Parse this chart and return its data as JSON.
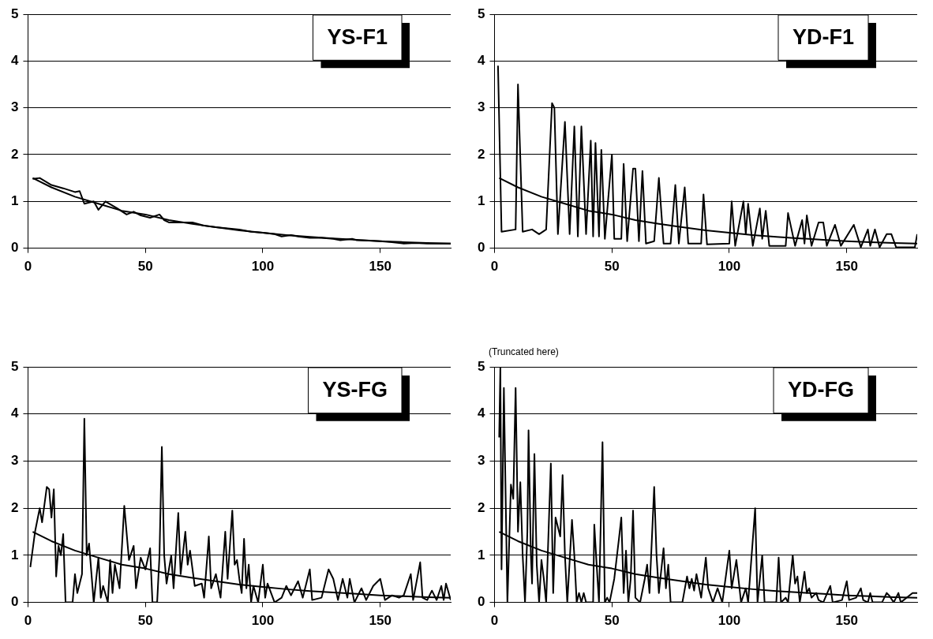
{
  "chart_data": [
    {
      "type": "line",
      "title": "YS-F1",
      "xlim": [
        0,
        180
      ],
      "xticks": [
        0,
        50,
        100,
        150
      ],
      "ylim": [
        0,
        5
      ],
      "yticks": [
        0,
        1,
        2,
        3,
        4,
        5
      ],
      "grid": "y",
      "line_style": "solid",
      "series": [
        {
          "color": "#000000",
          "x": [
            2,
            5,
            10,
            15,
            20,
            22,
            24,
            28,
            30,
            33,
            38,
            42,
            45,
            48,
            52,
            56,
            58,
            60,
            65,
            70,
            75,
            80,
            90,
            95,
            100,
            105,
            108,
            112,
            115,
            120,
            125,
            130,
            133,
            138,
            140,
            145,
            150,
            155,
            160,
            165,
            170,
            175,
            180
          ],
          "values": [
            1.48,
            1.5,
            1.35,
            1.28,
            1.2,
            1.22,
            0.95,
            1.0,
            0.82,
            1.0,
            0.85,
            0.72,
            0.78,
            0.7,
            0.65,
            0.72,
            0.6,
            0.55,
            0.55,
            0.55,
            0.48,
            0.45,
            0.4,
            0.35,
            0.33,
            0.3,
            0.25,
            0.28,
            0.25,
            0.22,
            0.22,
            0.2,
            0.17,
            0.2,
            0.17,
            0.16,
            0.15,
            0.13,
            0.1,
            0.11,
            0.1,
            0.1,
            0.1
          ]
        },
        {
          "color": "#000000",
          "x": [
            2,
            10,
            20,
            30,
            40,
            50,
            60,
            70,
            80,
            90,
            100,
            110,
            120,
            130,
            140,
            150,
            160,
            170,
            180
          ],
          "values": [
            1.5,
            1.3,
            1.1,
            0.95,
            0.8,
            0.72,
            0.6,
            0.52,
            0.45,
            0.38,
            0.33,
            0.28,
            0.24,
            0.21,
            0.18,
            0.15,
            0.13,
            0.11,
            0.1
          ]
        }
      ]
    },
    {
      "type": "line",
      "title": "YD-F1",
      "xlim": [
        0,
        180
      ],
      "xticks": [
        0,
        50,
        100,
        150
      ],
      "ylim": [
        0,
        5
      ],
      "yticks": [
        0,
        1,
        2,
        3,
        4,
        5
      ],
      "grid": "y",
      "line_style": "solid",
      "series": [
        {
          "color": "#000000",
          "x": [
            1.5,
            3,
            9,
            10,
            12,
            16,
            19,
            22,
            24.5,
            25.5,
            27,
            30,
            32,
            34,
            35.5,
            37,
            39,
            41,
            42,
            43,
            44.5,
            45.5,
            47,
            50,
            51,
            54,
            55,
            56.5,
            59,
            60,
            61.5,
            63,
            64.5,
            68,
            70,
            72,
            75,
            77,
            78.5,
            81,
            82.5,
            88,
            89,
            90.5,
            100,
            101,
            102.5,
            106,
            107,
            108,
            110,
            113,
            114,
            115.5,
            117,
            124,
            125,
            128,
            131,
            132,
            133,
            135,
            138,
            140,
            141.5,
            145,
            147.5,
            153,
            156,
            159,
            160,
            162,
            164,
            167,
            169,
            171,
            179,
            180
          ],
          "values": [
            3.9,
            0.35,
            0.4,
            3.5,
            0.35,
            0.4,
            0.3,
            0.4,
            3.1,
            3.0,
            0.3,
            2.7,
            0.3,
            2.6,
            0.25,
            2.6,
            0.3,
            2.3,
            0.25,
            2.25,
            0.25,
            2.1,
            0.2,
            2.0,
            0.2,
            0.2,
            1.8,
            0.15,
            1.7,
            1.7,
            0.15,
            1.65,
            0.1,
            0.15,
            1.5,
            0.1,
            0.1,
            1.35,
            0.1,
            1.3,
            0.1,
            0.1,
            1.15,
            0.08,
            0.1,
            1.0,
            0.05,
            1.0,
            0.3,
            0.95,
            0.05,
            0.85,
            0.2,
            0.8,
            0.05,
            0.05,
            0.75,
            0.05,
            0.6,
            0.1,
            0.7,
            0.05,
            0.55,
            0.55,
            0.05,
            0.5,
            0.05,
            0.5,
            0.02,
            0.4,
            0.05,
            0.4,
            0.02,
            0.3,
            0.3,
            0.02,
            0.02,
            0.3
          ]
        },
        {
          "color": "#000000",
          "x": [
            2,
            10,
            20,
            30,
            40,
            50,
            60,
            70,
            80,
            90,
            100,
            110,
            120,
            130,
            140,
            150,
            160,
            170,
            180
          ],
          "values": [
            1.5,
            1.3,
            1.1,
            0.95,
            0.8,
            0.72,
            0.6,
            0.52,
            0.45,
            0.38,
            0.33,
            0.28,
            0.24,
            0.21,
            0.18,
            0.15,
            0.13,
            0.11,
            0.1
          ]
        }
      ]
    },
    {
      "type": "line",
      "title": "YS-FG",
      "xlim": [
        0,
        180
      ],
      "xticks": [
        0,
        50,
        100,
        150
      ],
      "ylim": [
        0,
        5
      ],
      "yticks": [
        0,
        1,
        2,
        3,
        4,
        5
      ],
      "grid": "y",
      "line_style": "solid",
      "series": [
        {
          "color": "#000000",
          "x": [
            1,
            3,
            5,
            6,
            8,
            9,
            10,
            11,
            12,
            13,
            14,
            15,
            16,
            19,
            20,
            21,
            23,
            24,
            25,
            26,
            28,
            30,
            31,
            32,
            34,
            35,
            36,
            37,
            39,
            41,
            43,
            45,
            46,
            48,
            50,
            52,
            53,
            55,
            56,
            57,
            58,
            59,
            61,
            62,
            64,
            65,
            67,
            68,
            69,
            71,
            74,
            75,
            77,
            78,
            80,
            82,
            84,
            85,
            87,
            88,
            89,
            90,
            91,
            92,
            93,
            94,
            95,
            96,
            98,
            100,
            101,
            102,
            105,
            108,
            110,
            112,
            115,
            117,
            120,
            121,
            125,
            128,
            130,
            132,
            134,
            136,
            137,
            139,
            142,
            144,
            147,
            150,
            152,
            155,
            158,
            160,
            163,
            164,
            167,
            168,
            170,
            172,
            174,
            176,
            177,
            178,
            180
          ],
          "values": [
            0.75,
            1.5,
            2.0,
            1.7,
            2.45,
            2.4,
            1.8,
            2.4,
            0.55,
            1.2,
            1.0,
            1.45,
            0.0,
            0.0,
            0.6,
            0.2,
            0.6,
            3.9,
            1.0,
            1.25,
            0.0,
            0.95,
            0.1,
            0.35,
            0.0,
            0.9,
            0.2,
            0.8,
            0.3,
            2.05,
            0.9,
            1.2,
            0.3,
            0.95,
            0.7,
            1.15,
            0.0,
            0.0,
            1.0,
            3.3,
            1.0,
            0.4,
            1.0,
            0.3,
            1.9,
            0.6,
            1.5,
            0.8,
            1.1,
            0.35,
            0.4,
            0.1,
            1.4,
            0.3,
            0.6,
            0.1,
            1.5,
            0.5,
            1.95,
            0.8,
            0.9,
            0.5,
            0.2,
            1.35,
            0.3,
            0.8,
            0.0,
            0.35,
            0.0,
            0.8,
            0.1,
            0.4,
            0.0,
            0.1,
            0.35,
            0.15,
            0.45,
            0.1,
            0.7,
            0.05,
            0.1,
            0.7,
            0.5,
            0.05,
            0.5,
            0.1,
            0.5,
            0.0,
            0.3,
            0.05,
            0.35,
            0.5,
            0.05,
            0.15,
            0.1,
            0.15,
            0.6,
            0.05,
            0.85,
            0.1,
            0.05,
            0.25,
            0.05,
            0.35,
            0.05,
            0.4,
            0.05
          ]
        },
        {
          "color": "#000000",
          "x": [
            2,
            10,
            20,
            30,
            40,
            50,
            60,
            70,
            80,
            90,
            100,
            110,
            120,
            130,
            140,
            150,
            160,
            170,
            180
          ],
          "values": [
            1.5,
            1.3,
            1.1,
            0.95,
            0.8,
            0.72,
            0.6,
            0.52,
            0.45,
            0.38,
            0.33,
            0.28,
            0.24,
            0.21,
            0.18,
            0.15,
            0.13,
            0.11,
            0.1
          ]
        }
      ]
    },
    {
      "type": "line",
      "title": "YD-FG",
      "xlim": [
        0,
        180
      ],
      "xticks": [
        0,
        50,
        100,
        150
      ],
      "ylim": [
        0,
        5
      ],
      "yticks": [
        0,
        1,
        2,
        3,
        4,
        5
      ],
      "grid": "y",
      "line_style": "solid",
      "annotations": [
        {
          "text": "(Truncated here)",
          "x": 2.5,
          "y": 5
        }
      ],
      "series": [
        {
          "color": "#000000",
          "x": [
            2,
            2.5,
            3,
            4,
            5,
            5.5,
            7,
            8,
            9,
            10,
            11,
            12,
            13,
            14,
            14.5,
            15.5,
            16,
            17,
            18,
            19,
            20,
            21,
            22,
            24,
            25,
            26,
            28,
            29,
            30,
            31,
            33,
            34,
            35,
            36,
            37,
            38,
            39,
            42,
            42.5,
            43.5,
            44.5,
            46,
            47,
            48,
            49,
            51,
            53,
            54,
            55,
            56,
            57,
            58,
            59,
            60,
            62,
            64,
            65,
            66,
            68,
            69,
            70,
            72,
            73,
            74,
            75,
            80,
            82,
            83,
            84,
            85,
            86,
            88,
            90,
            91,
            93,
            95,
            97,
            100,
            101,
            103,
            105,
            107,
            108,
            111,
            112,
            114,
            115,
            120,
            121,
            122,
            124,
            125,
            127,
            128,
            129,
            130,
            131,
            132,
            133,
            134,
            135,
            137,
            138,
            140,
            143,
            144,
            148,
            150,
            151,
            154,
            156,
            157,
            159,
            160,
            161,
            165,
            167,
            168,
            170,
            172,
            173,
            178,
            180
          ],
          "values": [
            3.5,
            5.0,
            0.7,
            4.55,
            1.5,
            0.0,
            2.5,
            2.2,
            4.55,
            1.5,
            2.55,
            1.0,
            0.0,
            1.5,
            3.65,
            1.0,
            0.4,
            3.15,
            0.8,
            0.0,
            0.9,
            0.5,
            0.0,
            2.95,
            0.2,
            1.8,
            1.4,
            2.7,
            1.0,
            0.0,
            1.75,
            1.0,
            0.0,
            0.2,
            0.0,
            0.2,
            0.0,
            0.0,
            1.65,
            0.8,
            0.0,
            3.4,
            0.0,
            0.1,
            0.0,
            0.5,
            1.35,
            1.8,
            0.2,
            1.1,
            0.0,
            0.5,
            1.95,
            0.1,
            0.0,
            0.5,
            0.8,
            0.2,
            2.45,
            1.0,
            0.2,
            1.15,
            0.3,
            0.8,
            0.0,
            0.0,
            0.55,
            0.3,
            0.5,
            0.25,
            0.6,
            0.1,
            0.95,
            0.3,
            0.0,
            0.3,
            0.0,
            1.1,
            0.3,
            0.9,
            0.0,
            0.3,
            0.0,
            2.0,
            0.0,
            1.0,
            0.0,
            0.0,
            0.95,
            0.0,
            0.1,
            0.0,
            1.0,
            0.4,
            0.55,
            0.0,
            0.3,
            0.65,
            0.2,
            0.3,
            0.1,
            0.2,
            0.05,
            0.0,
            0.35,
            0.0,
            0.05,
            0.45,
            0.05,
            0.1,
            0.3,
            0.05,
            0.0,
            0.2,
            0.0,
            0.0,
            0.2,
            0.15,
            0.0,
            0.2,
            0.0,
            0.2,
            0.2
          ]
        },
        {
          "color": "#000000",
          "x": [
            2,
            10,
            20,
            30,
            40,
            50,
            60,
            70,
            80,
            90,
            100,
            110,
            120,
            130,
            140,
            150,
            160,
            170,
            180
          ],
          "values": [
            1.5,
            1.3,
            1.1,
            0.95,
            0.8,
            0.72,
            0.6,
            0.52,
            0.45,
            0.38,
            0.33,
            0.28,
            0.24,
            0.21,
            0.18,
            0.15,
            0.13,
            0.11,
            0.1
          ]
        }
      ]
    }
  ]
}
